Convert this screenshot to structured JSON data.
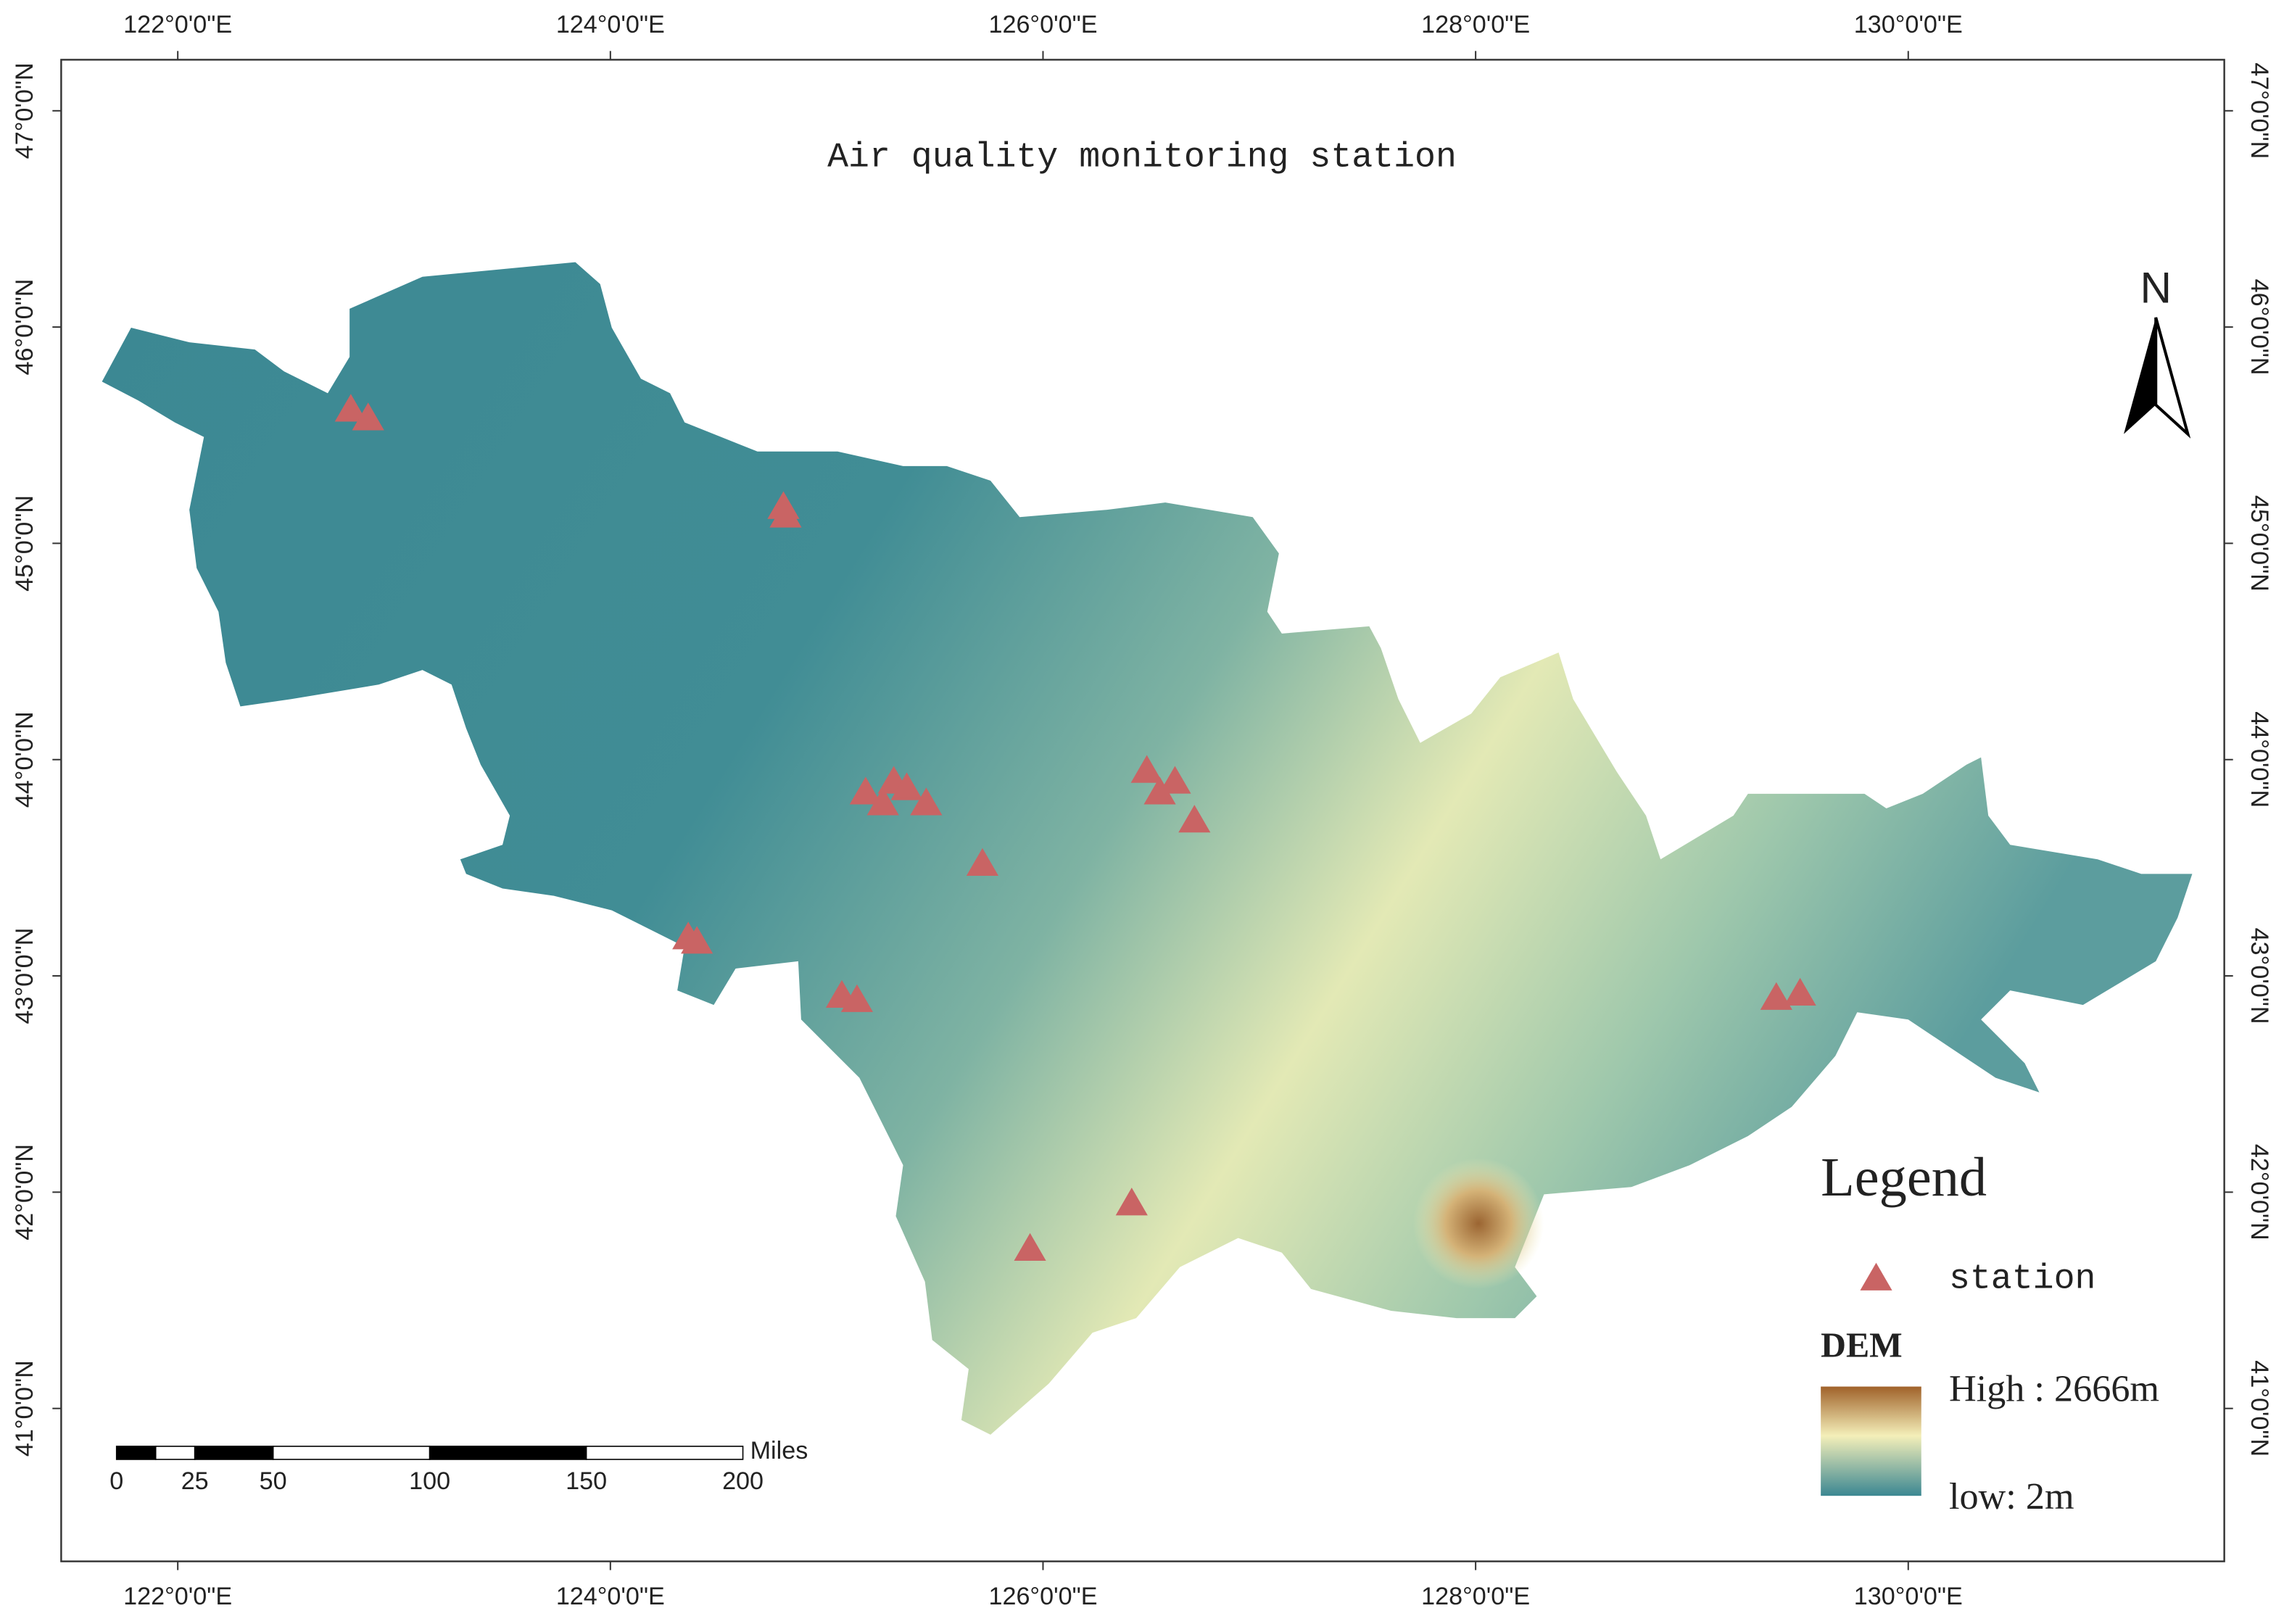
{
  "chart_data": {
    "type": "map",
    "title": "Air quality monitoring station",
    "xlim": [
      121.461,
      131.461
    ],
    "ylim": [
      40.293,
      47.236
    ],
    "xticks": [
      {
        "value": 122,
        "label": "122°0'0\"E"
      },
      {
        "value": 124,
        "label": "124°0'0\"E"
      },
      {
        "value": 126,
        "label": "126°0'0\"E"
      },
      {
        "value": 128,
        "label": "128°0'0\"E"
      },
      {
        "value": 130,
        "label": "130°0'0\"E"
      }
    ],
    "yticks": [
      {
        "value": 41,
        "label": "41°0'0\"N"
      },
      {
        "value": 42,
        "label": "42°0'0\"N"
      },
      {
        "value": 43,
        "label": "43°0'0\"N"
      },
      {
        "value": 44,
        "label": "44°0'0\"N"
      },
      {
        "value": 45,
        "label": "45°0'0\"N"
      },
      {
        "value": 46,
        "label": "46°0'0\"N"
      },
      {
        "value": 47,
        "label": "47°0'0\"N"
      }
    ],
    "series": [
      {
        "name": "station",
        "color": "#c96464",
        "x": [
          122.8,
          122.88,
          124.8,
          124.81,
          125.18,
          125.26,
          125.31,
          125.37,
          125.46,
          125.72,
          126.48,
          126.54,
          126.61,
          126.7,
          124.36,
          124.4,
          125.07,
          125.14,
          126.41,
          125.94,
          129.39,
          129.5
        ],
        "y": [
          45.61,
          45.57,
          45.16,
          45.12,
          43.84,
          43.79,
          43.89,
          43.86,
          43.79,
          43.51,
          43.94,
          43.84,
          43.89,
          43.71,
          43.17,
          43.15,
          42.9,
          42.88,
          41.94,
          41.73,
          42.89,
          42.91
        ]
      }
    ],
    "legend_title": "Legend",
    "dem": {
      "title": "DEM",
      "high_label": "High : 2666m",
      "low_label": "low: 2m"
    },
    "north_label": "N",
    "scale_bar": {
      "ticks": [
        0,
        25,
        50,
        100,
        150,
        200
      ],
      "unit": "Miles"
    }
  }
}
